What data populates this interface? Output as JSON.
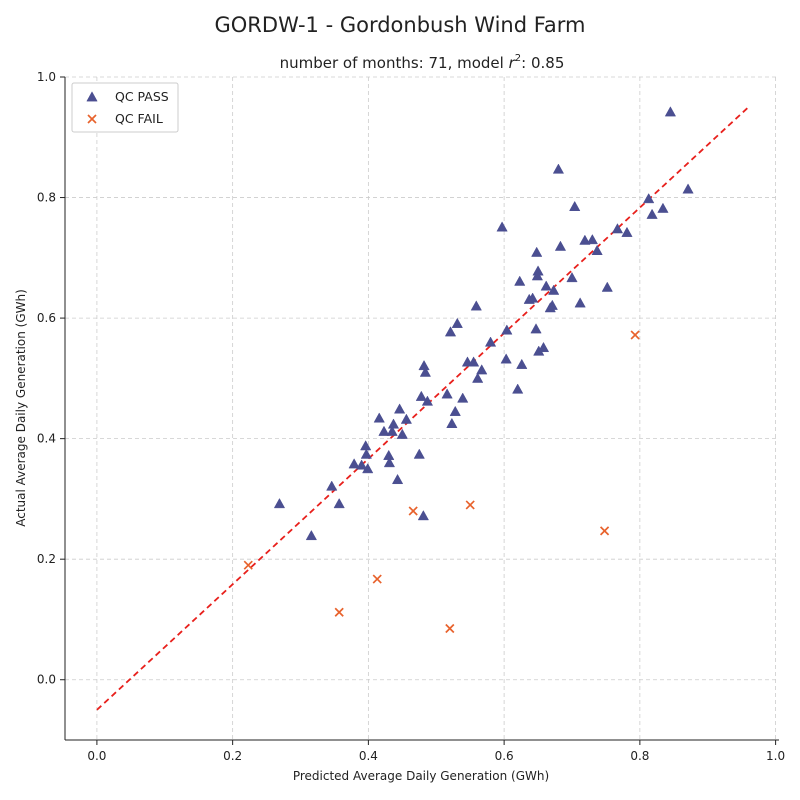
{
  "chart_data": {
    "type": "scatter",
    "title": "GORDW-1 - Gordonbush Wind Farm",
    "subtitle_prefix": "number of months: 71, model ",
    "subtitle_r": "r",
    "subtitle_exp": "2",
    "subtitle_suffix": ": 0.85",
    "xlabel": "Predicted Average Daily Generation (GWh)",
    "ylabel": "Actual Average Daily Generation (GWh)",
    "xlim": [
      -0.047,
      1.005
    ],
    "ylim": [
      -0.1,
      1.0
    ],
    "xticks": [
      0.0,
      0.2,
      0.4,
      0.6,
      0.8,
      1.0
    ],
    "xtick_labels": [
      "0.0",
      "0.2",
      "0.4",
      "0.6",
      "0.8",
      "1.0"
    ],
    "yticks": [
      0.0,
      0.2,
      0.4,
      0.6,
      0.8,
      1.0
    ],
    "ytick_labels": [
      "0.0",
      "0.2",
      "0.4",
      "0.6",
      "0.8",
      "1.0"
    ],
    "grid": true,
    "legend_position": "top-left",
    "colors": {
      "pass": "#4b4f91",
      "fail": "#e8622c",
      "fit_line": "#e8201c",
      "grid": "#cccccc"
    },
    "fit_line": {
      "x": [
        0.0,
        0.96
      ],
      "y": [
        -0.05,
        0.95
      ]
    },
    "series": [
      {
        "name": "QC PASS",
        "marker": "triangle",
        "x": [
          0.269,
          0.316,
          0.346,
          0.357,
          0.379,
          0.39,
          0.396,
          0.397,
          0.399,
          0.416,
          0.423,
          0.43,
          0.431,
          0.435,
          0.437,
          0.443,
          0.446,
          0.45,
          0.456,
          0.475,
          0.478,
          0.481,
          0.482,
          0.484,
          0.487,
          0.516,
          0.521,
          0.523,
          0.528,
          0.531,
          0.539,
          0.546,
          0.555,
          0.559,
          0.561,
          0.567,
          0.58,
          0.597,
          0.603,
          0.604,
          0.62,
          0.623,
          0.626,
          0.637,
          0.642,
          0.647,
          0.648,
          0.65,
          0.649,
          0.651,
          0.658,
          0.662,
          0.668,
          0.671,
          0.673,
          0.68,
          0.683,
          0.7,
          0.704,
          0.712,
          0.719,
          0.73,
          0.737,
          0.752,
          0.767,
          0.781,
          0.813,
          0.818,
          0.834,
          0.845,
          0.871
        ],
        "y": [
          0.292,
          0.239,
          0.321,
          0.292,
          0.358,
          0.356,
          0.388,
          0.374,
          0.35,
          0.434,
          0.412,
          0.372,
          0.36,
          0.412,
          0.424,
          0.332,
          0.449,
          0.407,
          0.432,
          0.374,
          0.47,
          0.272,
          0.521,
          0.51,
          0.462,
          0.474,
          0.577,
          0.425,
          0.445,
          0.591,
          0.467,
          0.527,
          0.527,
          0.62,
          0.5,
          0.514,
          0.56,
          0.751,
          0.532,
          0.58,
          0.482,
          0.661,
          0.523,
          0.631,
          0.633,
          0.582,
          0.709,
          0.678,
          0.67,
          0.545,
          0.551,
          0.653,
          0.617,
          0.621,
          0.646,
          0.847,
          0.719,
          0.667,
          0.785,
          0.625,
          0.729,
          0.73,
          0.712,
          0.651,
          0.748,
          0.742,
          0.798,
          0.772,
          0.782,
          0.942,
          0.814
        ]
      },
      {
        "name": "QC FAIL",
        "marker": "x",
        "x": [
          0.223,
          0.357,
          0.413,
          0.466,
          0.52,
          0.55,
          0.748,
          0.793
        ],
        "y": [
          0.19,
          0.112,
          0.167,
          0.28,
          0.085,
          0.29,
          0.247,
          0.572
        ]
      }
    ]
  }
}
